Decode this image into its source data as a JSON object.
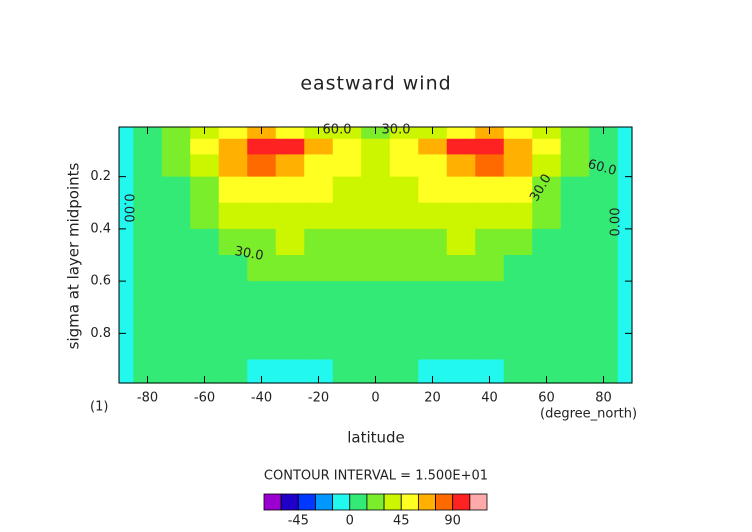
{
  "chart_data": {
    "type": "contour",
    "title": "eastward wind",
    "x_label": "latitude",
    "y_label": "sigma at layer midpoints",
    "x_units": "(degree_north)",
    "y_units": "(1)",
    "contour_interval_text": "CONTOUR INTERVAL = 1.500E+01",
    "contour_labels": [
      "60.0",
      "30.0",
      "60.0",
      "30.0",
      "30.0",
      "0.00",
      "0.00"
    ],
    "x": [
      -90,
      -80,
      -70,
      -60,
      -50,
      -40,
      -30,
      -20,
      -10,
      0,
      10,
      20,
      30,
      40,
      50,
      60,
      70,
      80,
      90
    ],
    "y": [
      0.03,
      0.08,
      0.15,
      0.25,
      0.35,
      0.45,
      0.55,
      0.65,
      0.75,
      0.85,
      0.95
    ],
    "z": [
      [
        -1,
        10,
        20,
        35,
        50,
        60,
        55,
        40,
        30,
        25,
        30,
        40,
        55,
        60,
        50,
        35,
        20,
        10,
        -1
      ],
      [
        -1,
        10,
        25,
        45,
        70,
        90,
        95,
        70,
        45,
        35,
        45,
        70,
        95,
        90,
        70,
        45,
        25,
        10,
        -1
      ],
      [
        -1,
        8,
        20,
        40,
        60,
        75,
        70,
        55,
        45,
        40,
        45,
        55,
        70,
        75,
        60,
        40,
        20,
        8,
        -1
      ],
      [
        -1,
        5,
        12,
        25,
        45,
        55,
        55,
        45,
        38,
        35,
        38,
        45,
        55,
        55,
        45,
        25,
        12,
        5,
        -1
      ],
      [
        -1,
        5,
        10,
        18,
        30,
        40,
        42,
        38,
        32,
        30,
        32,
        38,
        42,
        40,
        30,
        18,
        10,
        5,
        -1
      ],
      [
        -1,
        4,
        8,
        12,
        20,
        28,
        30,
        28,
        25,
        22,
        25,
        28,
        30,
        28,
        20,
        12,
        8,
        4,
        -1
      ],
      [
        -1,
        4,
        7,
        10,
        14,
        18,
        18,
        16,
        15,
        16,
        15,
        16,
        18,
        18,
        14,
        10,
        7,
        4,
        -1
      ],
      [
        -1,
        3,
        6,
        9,
        12,
        14,
        13,
        12,
        12,
        12,
        12,
        12,
        13,
        14,
        12,
        9,
        6,
        3,
        -1
      ],
      [
        -1,
        3,
        5,
        7,
        8,
        8,
        6,
        5,
        6,
        6,
        6,
        5,
        6,
        8,
        8,
        7,
        5,
        3,
        -1
      ],
      [
        -1,
        2,
        4,
        5,
        5,
        3,
        1,
        2,
        4,
        5,
        4,
        2,
        1,
        3,
        5,
        5,
        4,
        2,
        -1
      ],
      [
        -2,
        2,
        3,
        3,
        2,
        -2,
        -4,
        -2,
        2,
        3,
        2,
        -2,
        -4,
        -2,
        2,
        3,
        3,
        2,
        -2
      ]
    ],
    "levels": [
      -75,
      -60,
      -45,
      -30,
      -15,
      0,
      15,
      30,
      45,
      60,
      75,
      90,
      105
    ],
    "colors": [
      "#9a00d0",
      "#2000c8",
      "#0038ff",
      "#0098ff",
      "#22f8ee",
      "#33ea77",
      "#7aee2a",
      "#ccf500",
      "#ffff22",
      "#ffb000",
      "#ff6a00",
      "#ff2222",
      "#ffaaaa"
    ],
    "colorbar_ticks": [
      -45,
      0,
      45,
      90
    ],
    "xlim": [
      -90,
      90
    ],
    "ylim": [
      0.99,
      0.01
    ],
    "xticks": [
      -80,
      -60,
      -40,
      -20,
      0,
      20,
      40,
      60,
      80
    ],
    "yticks": [
      0.2,
      0.4,
      0.6,
      0.8
    ]
  }
}
